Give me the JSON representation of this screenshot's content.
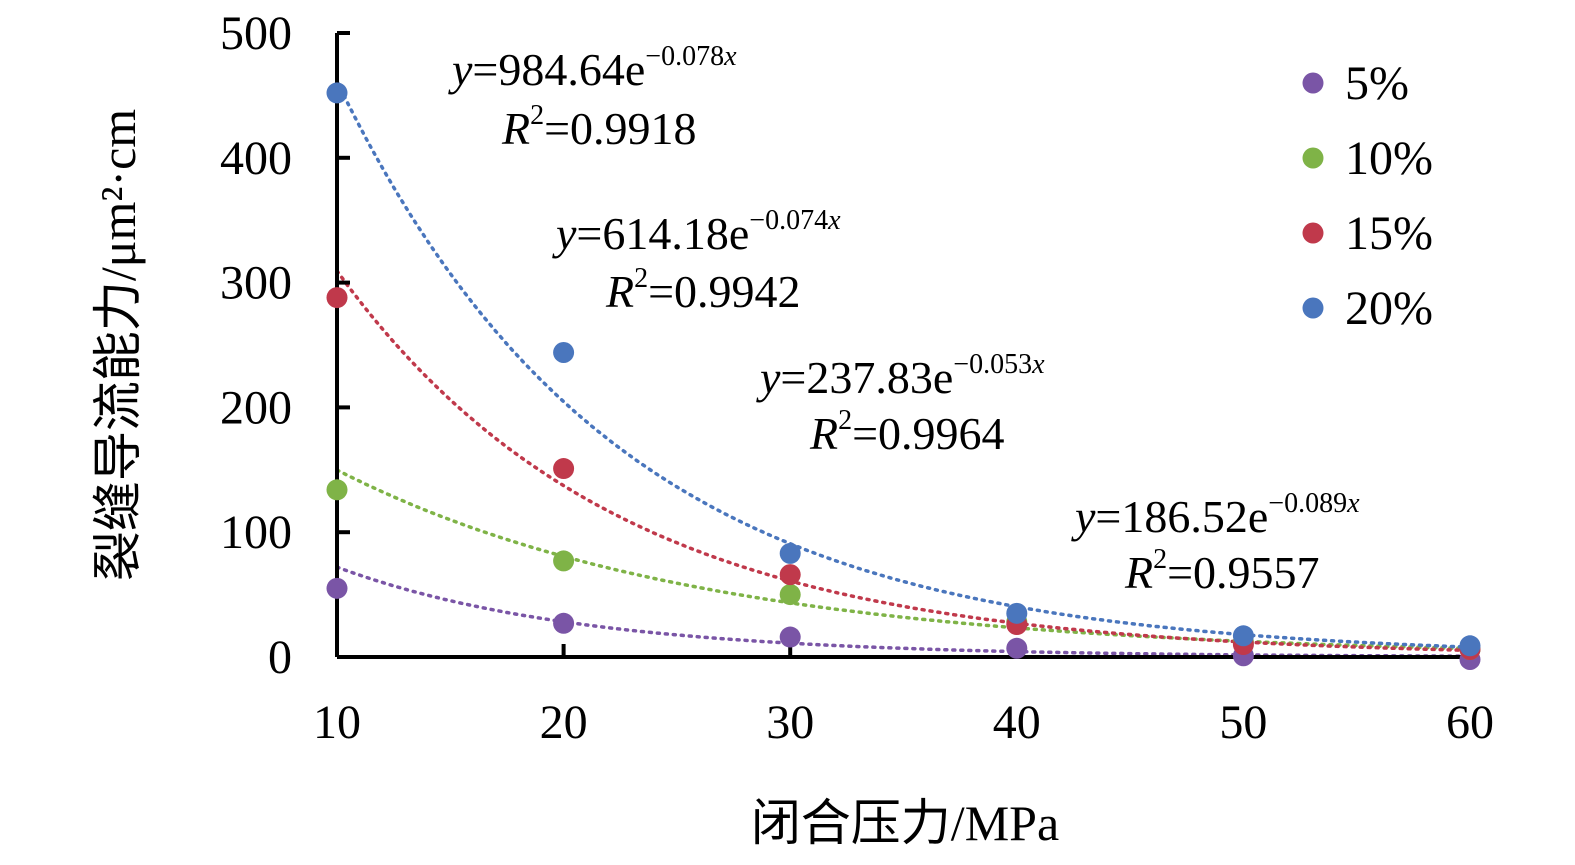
{
  "chart_data": {
    "type": "scatter",
    "xlabel": "闭合压力/MPa",
    "ylabel": "裂缝导流能力/μm²·cm",
    "xlim": [
      10,
      60
    ],
    "ylim": [
      0,
      500
    ],
    "x_ticks": [
      "10",
      "20",
      "30",
      "40",
      "50",
      "60"
    ],
    "y_ticks": [
      "0",
      "100",
      "200",
      "300",
      "400",
      "500"
    ],
    "grid": false,
    "legend_position": "top-right",
    "x": [
      10,
      20,
      30,
      40,
      50,
      60
    ],
    "series": [
      {
        "name": "5%",
        "color": "#7a55a6",
        "values": [
          55,
          27,
          16,
          7,
          1,
          -2
        ],
        "trendline": "exponential",
        "equation": {
          "y_var": "y",
          "coef": "=186.52e",
          "exp": "−0.089",
          "x_var": "x",
          "r_var": "R",
          "r_sup": "2",
          "r2": "=0.9557"
        }
      },
      {
        "name": "10%",
        "color": "#7fb347",
        "values": [
          134,
          77,
          50,
          28,
          12,
          6
        ],
        "trendline": "exponential",
        "equation": {
          "y_var": "y",
          "coef": "=237.83e",
          "exp": "−0.053",
          "x_var": "x",
          "r_var": "R",
          "r_sup": "2",
          "r2": "=0.9964"
        }
      },
      {
        "name": "15%",
        "color": "#c0394b",
        "values": [
          288,
          151,
          66,
          26,
          10,
          6
        ],
        "trendline": "exponential",
        "equation": {
          "y_var": "y",
          "coef": "=614.18e",
          "exp": "−0.074",
          "x_var": "x",
          "r_var": "R",
          "r_sup": "2",
          "r2": "=0.9942"
        }
      },
      {
        "name": "20%",
        "color": "#4a76bd",
        "values": [
          452,
          244,
          83,
          35,
          17,
          9
        ],
        "trendline": "exponential",
        "equation": {
          "y_var": "y",
          "coef": "=984.64e",
          "exp": "−0.078",
          "x_var": "x",
          "r_var": "R",
          "r_sup": "2",
          "r2": "=0.9918"
        }
      }
    ]
  }
}
